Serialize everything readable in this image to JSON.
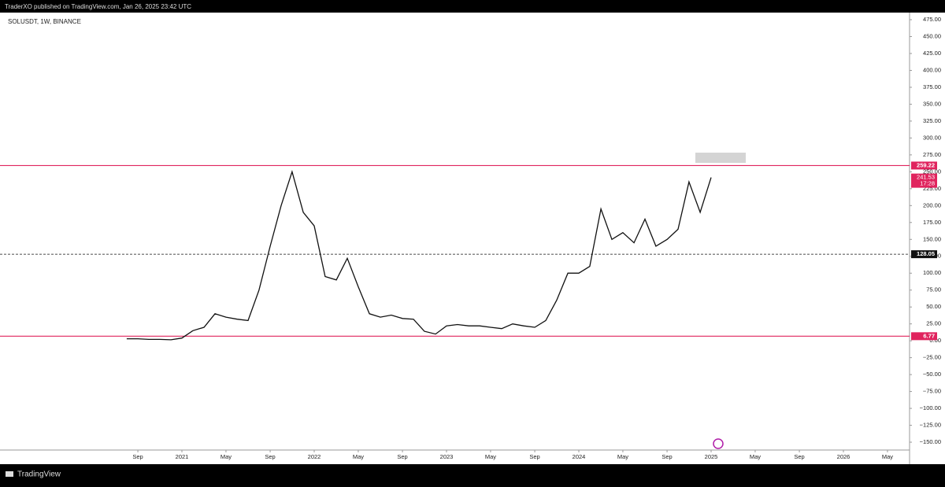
{
  "header": {
    "publisher": "TraderXO published on TradingView.com, Jan 26, 2025 23:42 UTC"
  },
  "chart_data": {
    "type": "line",
    "title": "SOLUSDT, 1W, BINANCE",
    "color": "#111111",
    "x": [
      2020.583,
      2020.667,
      2020.75,
      2020.833,
      2020.917,
      2021.0,
      2021.083,
      2021.167,
      2021.25,
      2021.333,
      2021.417,
      2021.5,
      2021.583,
      2021.667,
      2021.75,
      2021.833,
      2021.917,
      2022.0,
      2022.083,
      2022.167,
      2022.25,
      2022.333,
      2022.417,
      2022.5,
      2022.583,
      2022.667,
      2022.75,
      2022.833,
      2022.917,
      2023.0,
      2023.083,
      2023.167,
      2023.25,
      2023.333,
      2023.417,
      2023.5,
      2023.583,
      2023.667,
      2023.75,
      2023.833,
      2023.917,
      2024.0,
      2024.083,
      2024.167,
      2024.25,
      2024.333,
      2024.417,
      2024.5,
      2024.583,
      2024.667,
      2024.75,
      2024.833,
      2024.917,
      2025.0
    ],
    "values": [
      3,
      3,
      2,
      2,
      1.5,
      4,
      15,
      20,
      40,
      35,
      32,
      30,
      75,
      140,
      200,
      250,
      190,
      170,
      95,
      90,
      122,
      80,
      40,
      35,
      38,
      33,
      32,
      14,
      10,
      22,
      24,
      22,
      22,
      20,
      18,
      25,
      22,
      20,
      30,
      60,
      100,
      100,
      110,
      195,
      150,
      160,
      145,
      180,
      140,
      150,
      165,
      235,
      190,
      241.53
    ],
    "xlim": [
      2019.625,
      2026.5
    ],
    "xticks": [
      {
        "value": 2020.667,
        "label": "Sep"
      },
      2021,
      {
        "value": 2021.333,
        "label": "May"
      },
      {
        "value": 2021.667,
        "label": "Sep"
      },
      2022,
      {
        "value": 2022.333,
        "label": "May"
      },
      {
        "value": 2022.667,
        "label": "Sep"
      },
      2023,
      {
        "value": 2023.333,
        "label": "May"
      },
      {
        "value": 2023.667,
        "label": "Sep"
      },
      2024,
      {
        "value": 2024.333,
        "label": "May"
      },
      {
        "value": 2024.667,
        "label": "Sep"
      },
      2025,
      {
        "value": 2025.333,
        "label": "May"
      },
      {
        "value": 2025.667,
        "label": "Sep"
      },
      2026,
      {
        "value": 2026.333,
        "label": "May"
      }
    ],
    "ylim": [
      -161.6,
      485.5
    ],
    "yticks": [
      {
        "value": 475,
        "label": "475.00"
      },
      {
        "value": 450,
        "label": "450.00"
      },
      {
        "value": 425,
        "label": "425.00"
      },
      {
        "value": 400,
        "label": "400.00"
      },
      {
        "value": 375,
        "label": "375.00"
      },
      {
        "value": 350,
        "label": "350.00"
      },
      {
        "value": 325,
        "label": "325.00"
      },
      {
        "value": 300,
        "label": "300.00"
      },
      {
        "value": 275,
        "label": "275.00"
      },
      {
        "value": 250,
        "label": "250.00"
      },
      {
        "value": 225,
        "label": "225.00"
      },
      {
        "value": 200,
        "label": "200.00"
      },
      {
        "value": 175,
        "label": "175.00"
      },
      {
        "value": 150,
        "label": "150.00"
      },
      {
        "value": 125,
        "label": "125.00"
      },
      {
        "value": 100,
        "label": "100.00"
      },
      {
        "value": 75,
        "label": "75.00"
      },
      {
        "value": 50,
        "label": "50.00"
      },
      {
        "value": 25,
        "label": "25.00"
      },
      {
        "value": 0,
        "label": "0.00"
      },
      {
        "value": -25,
        "label": "−25.00"
      },
      {
        "value": -50,
        "label": "−50.00"
      },
      {
        "value": -75,
        "label": "−75.00"
      },
      {
        "value": -100,
        "label": "−100.00"
      },
      {
        "value": -125,
        "label": "−125.00"
      },
      {
        "value": -150,
        "label": "−150.00"
      }
    ],
    "levels": [
      {
        "value": 259.22,
        "color": "#e0245e",
        "style": "solid"
      },
      {
        "value": 128.05,
        "color": "#111111",
        "style": "dashed"
      },
      {
        "value": 6.77,
        "color": "#e0245e",
        "style": "solid"
      }
    ],
    "last_price": 241.53,
    "countdown": "17:28",
    "last_color": "#e0245e"
  },
  "footer": {
    "brand": "TradingView"
  }
}
